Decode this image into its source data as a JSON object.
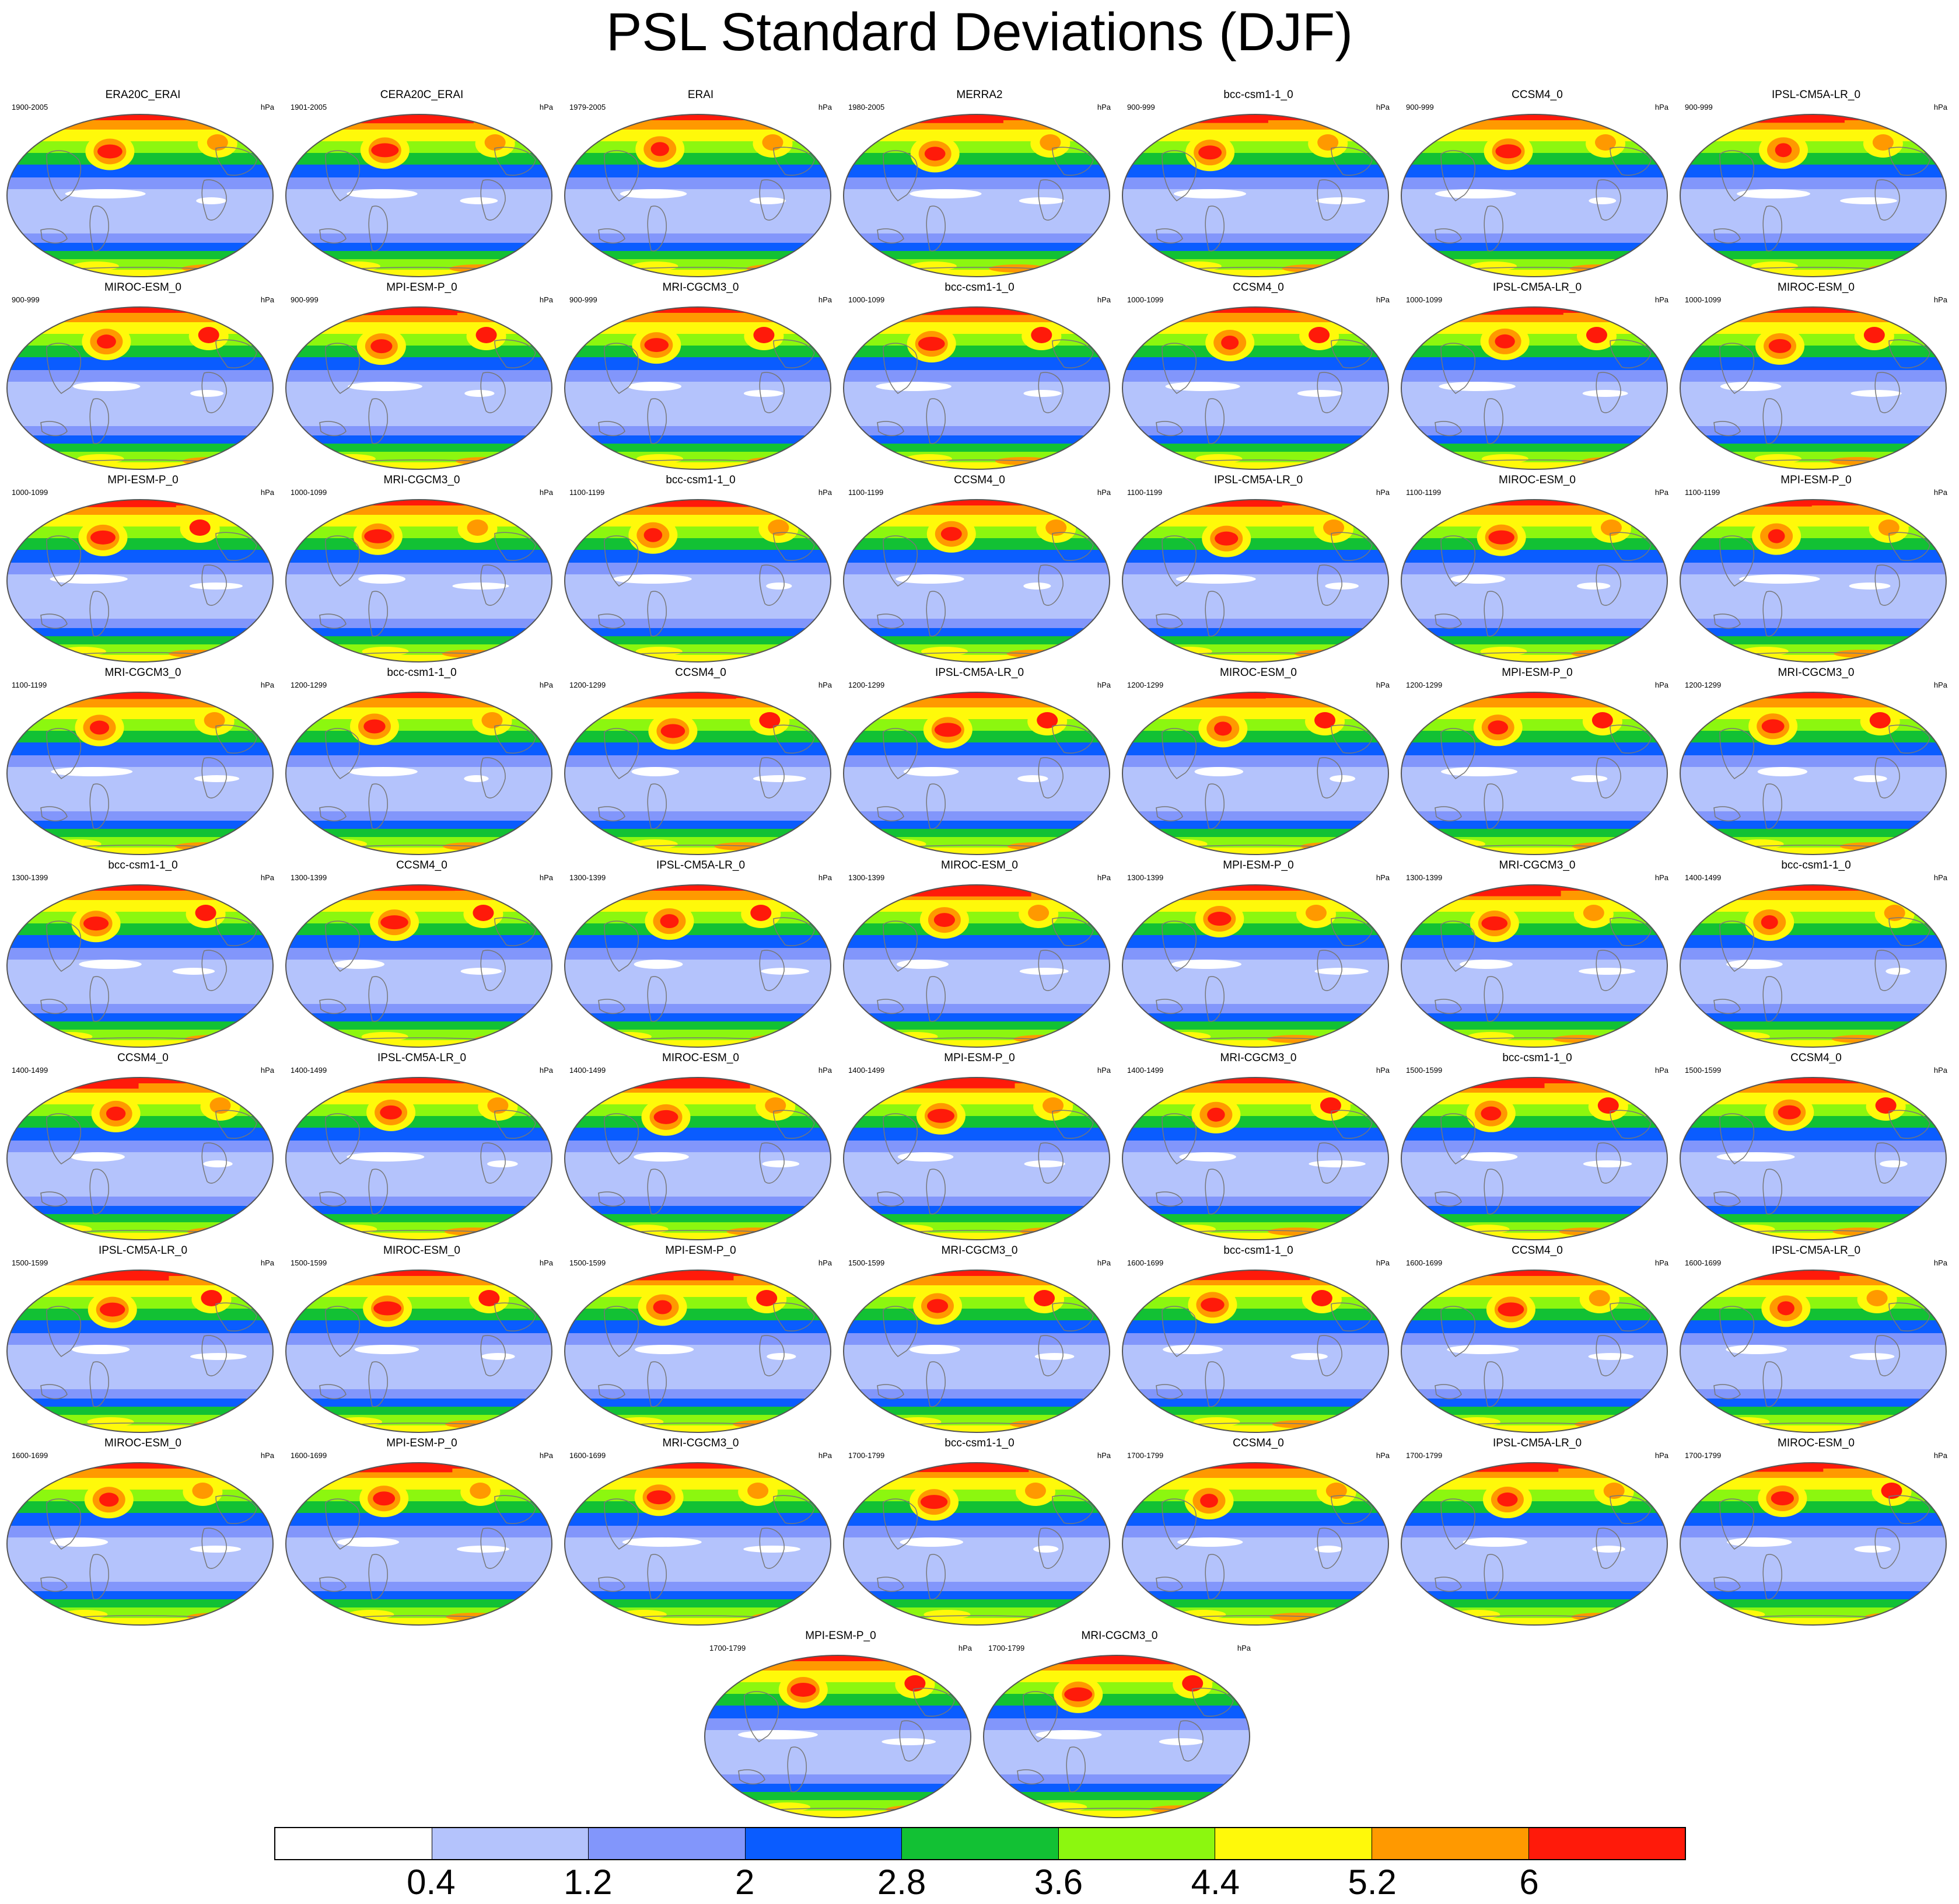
{
  "title": "PSL Standard Deviations (DJF)",
  "unit": "hPa",
  "colorbar": {
    "levels": [
      "0.4",
      "1.2",
      "2",
      "2.8",
      "3.6",
      "4.4",
      "5.2",
      "6"
    ],
    "colors": [
      "#ffffff",
      "#b4c3fc",
      "#8296fb",
      "#0a5cff",
      "#12c134",
      "#8cf70f",
      "#fff90a",
      "#ff9900",
      "#ff1a0a"
    ]
  },
  "panels": [
    {
      "model": "ERA20C_ERAI",
      "years": "1900-2005"
    },
    {
      "model": "CERA20C_ERAI",
      "years": "1901-2005"
    },
    {
      "model": "ERAI",
      "years": "1979-2005"
    },
    {
      "model": "MERRA2",
      "years": "1980-2005"
    },
    {
      "model": "bcc-csm1-1_0",
      "years": "900-999"
    },
    {
      "model": "CCSM4_0",
      "years": "900-999"
    },
    {
      "model": "IPSL-CM5A-LR_0",
      "years": "900-999"
    },
    {
      "model": "MIROC-ESM_0",
      "years": "900-999"
    },
    {
      "model": "MPI-ESM-P_0",
      "years": "900-999"
    },
    {
      "model": "MRI-CGCM3_0",
      "years": "900-999"
    },
    {
      "model": "bcc-csm1-1_0",
      "years": "1000-1099"
    },
    {
      "model": "CCSM4_0",
      "years": "1000-1099"
    },
    {
      "model": "IPSL-CM5A-LR_0",
      "years": "1000-1099"
    },
    {
      "model": "MIROC-ESM_0",
      "years": "1000-1099"
    },
    {
      "model": "MPI-ESM-P_0",
      "years": "1000-1099"
    },
    {
      "model": "MRI-CGCM3_0",
      "years": "1000-1099"
    },
    {
      "model": "bcc-csm1-1_0",
      "years": "1100-1199"
    },
    {
      "model": "CCSM4_0",
      "years": "1100-1199"
    },
    {
      "model": "IPSL-CM5A-LR_0",
      "years": "1100-1199"
    },
    {
      "model": "MIROC-ESM_0",
      "years": "1100-1199"
    },
    {
      "model": "MPI-ESM-P_0",
      "years": "1100-1199"
    },
    {
      "model": "MRI-CGCM3_0",
      "years": "1100-1199"
    },
    {
      "model": "bcc-csm1-1_0",
      "years": "1200-1299"
    },
    {
      "model": "CCSM4_0",
      "years": "1200-1299"
    },
    {
      "model": "IPSL-CM5A-LR_0",
      "years": "1200-1299"
    },
    {
      "model": "MIROC-ESM_0",
      "years": "1200-1299"
    },
    {
      "model": "MPI-ESM-P_0",
      "years": "1200-1299"
    },
    {
      "model": "MRI-CGCM3_0",
      "years": "1200-1299"
    },
    {
      "model": "bcc-csm1-1_0",
      "years": "1300-1399"
    },
    {
      "model": "CCSM4_0",
      "years": "1300-1399"
    },
    {
      "model": "IPSL-CM5A-LR_0",
      "years": "1300-1399"
    },
    {
      "model": "MIROC-ESM_0",
      "years": "1300-1399"
    },
    {
      "model": "MPI-ESM-P_0",
      "years": "1300-1399"
    },
    {
      "model": "MRI-CGCM3_0",
      "years": "1300-1399"
    },
    {
      "model": "bcc-csm1-1_0",
      "years": "1400-1499"
    },
    {
      "model": "CCSM4_0",
      "years": "1400-1499"
    },
    {
      "model": "IPSL-CM5A-LR_0",
      "years": "1400-1499"
    },
    {
      "model": "MIROC-ESM_0",
      "years": "1400-1499"
    },
    {
      "model": "MPI-ESM-P_0",
      "years": "1400-1499"
    },
    {
      "model": "MRI-CGCM3_0",
      "years": "1400-1499"
    },
    {
      "model": "bcc-csm1-1_0",
      "years": "1500-1599"
    },
    {
      "model": "CCSM4_0",
      "years": "1500-1599"
    },
    {
      "model": "IPSL-CM5A-LR_0",
      "years": "1500-1599"
    },
    {
      "model": "MIROC-ESM_0",
      "years": "1500-1599"
    },
    {
      "model": "MPI-ESM-P_0",
      "years": "1500-1599"
    },
    {
      "model": "MRI-CGCM3_0",
      "years": "1500-1599"
    },
    {
      "model": "bcc-csm1-1_0",
      "years": "1600-1699"
    },
    {
      "model": "CCSM4_0",
      "years": "1600-1699"
    },
    {
      "model": "IPSL-CM5A-LR_0",
      "years": "1600-1699"
    },
    {
      "model": "MIROC-ESM_0",
      "years": "1600-1699"
    },
    {
      "model": "MPI-ESM-P_0",
      "years": "1600-1699"
    },
    {
      "model": "MRI-CGCM3_0",
      "years": "1600-1699"
    },
    {
      "model": "bcc-csm1-1_0",
      "years": "1700-1799"
    },
    {
      "model": "CCSM4_0",
      "years": "1700-1799"
    },
    {
      "model": "IPSL-CM5A-LR_0",
      "years": "1700-1799"
    },
    {
      "model": "MIROC-ESM_0",
      "years": "1700-1799"
    },
    {
      "model": "MPI-ESM-P_0",
      "years": "1700-1799"
    },
    {
      "model": "MRI-CGCM3_0",
      "years": "1700-1799"
    }
  ]
}
